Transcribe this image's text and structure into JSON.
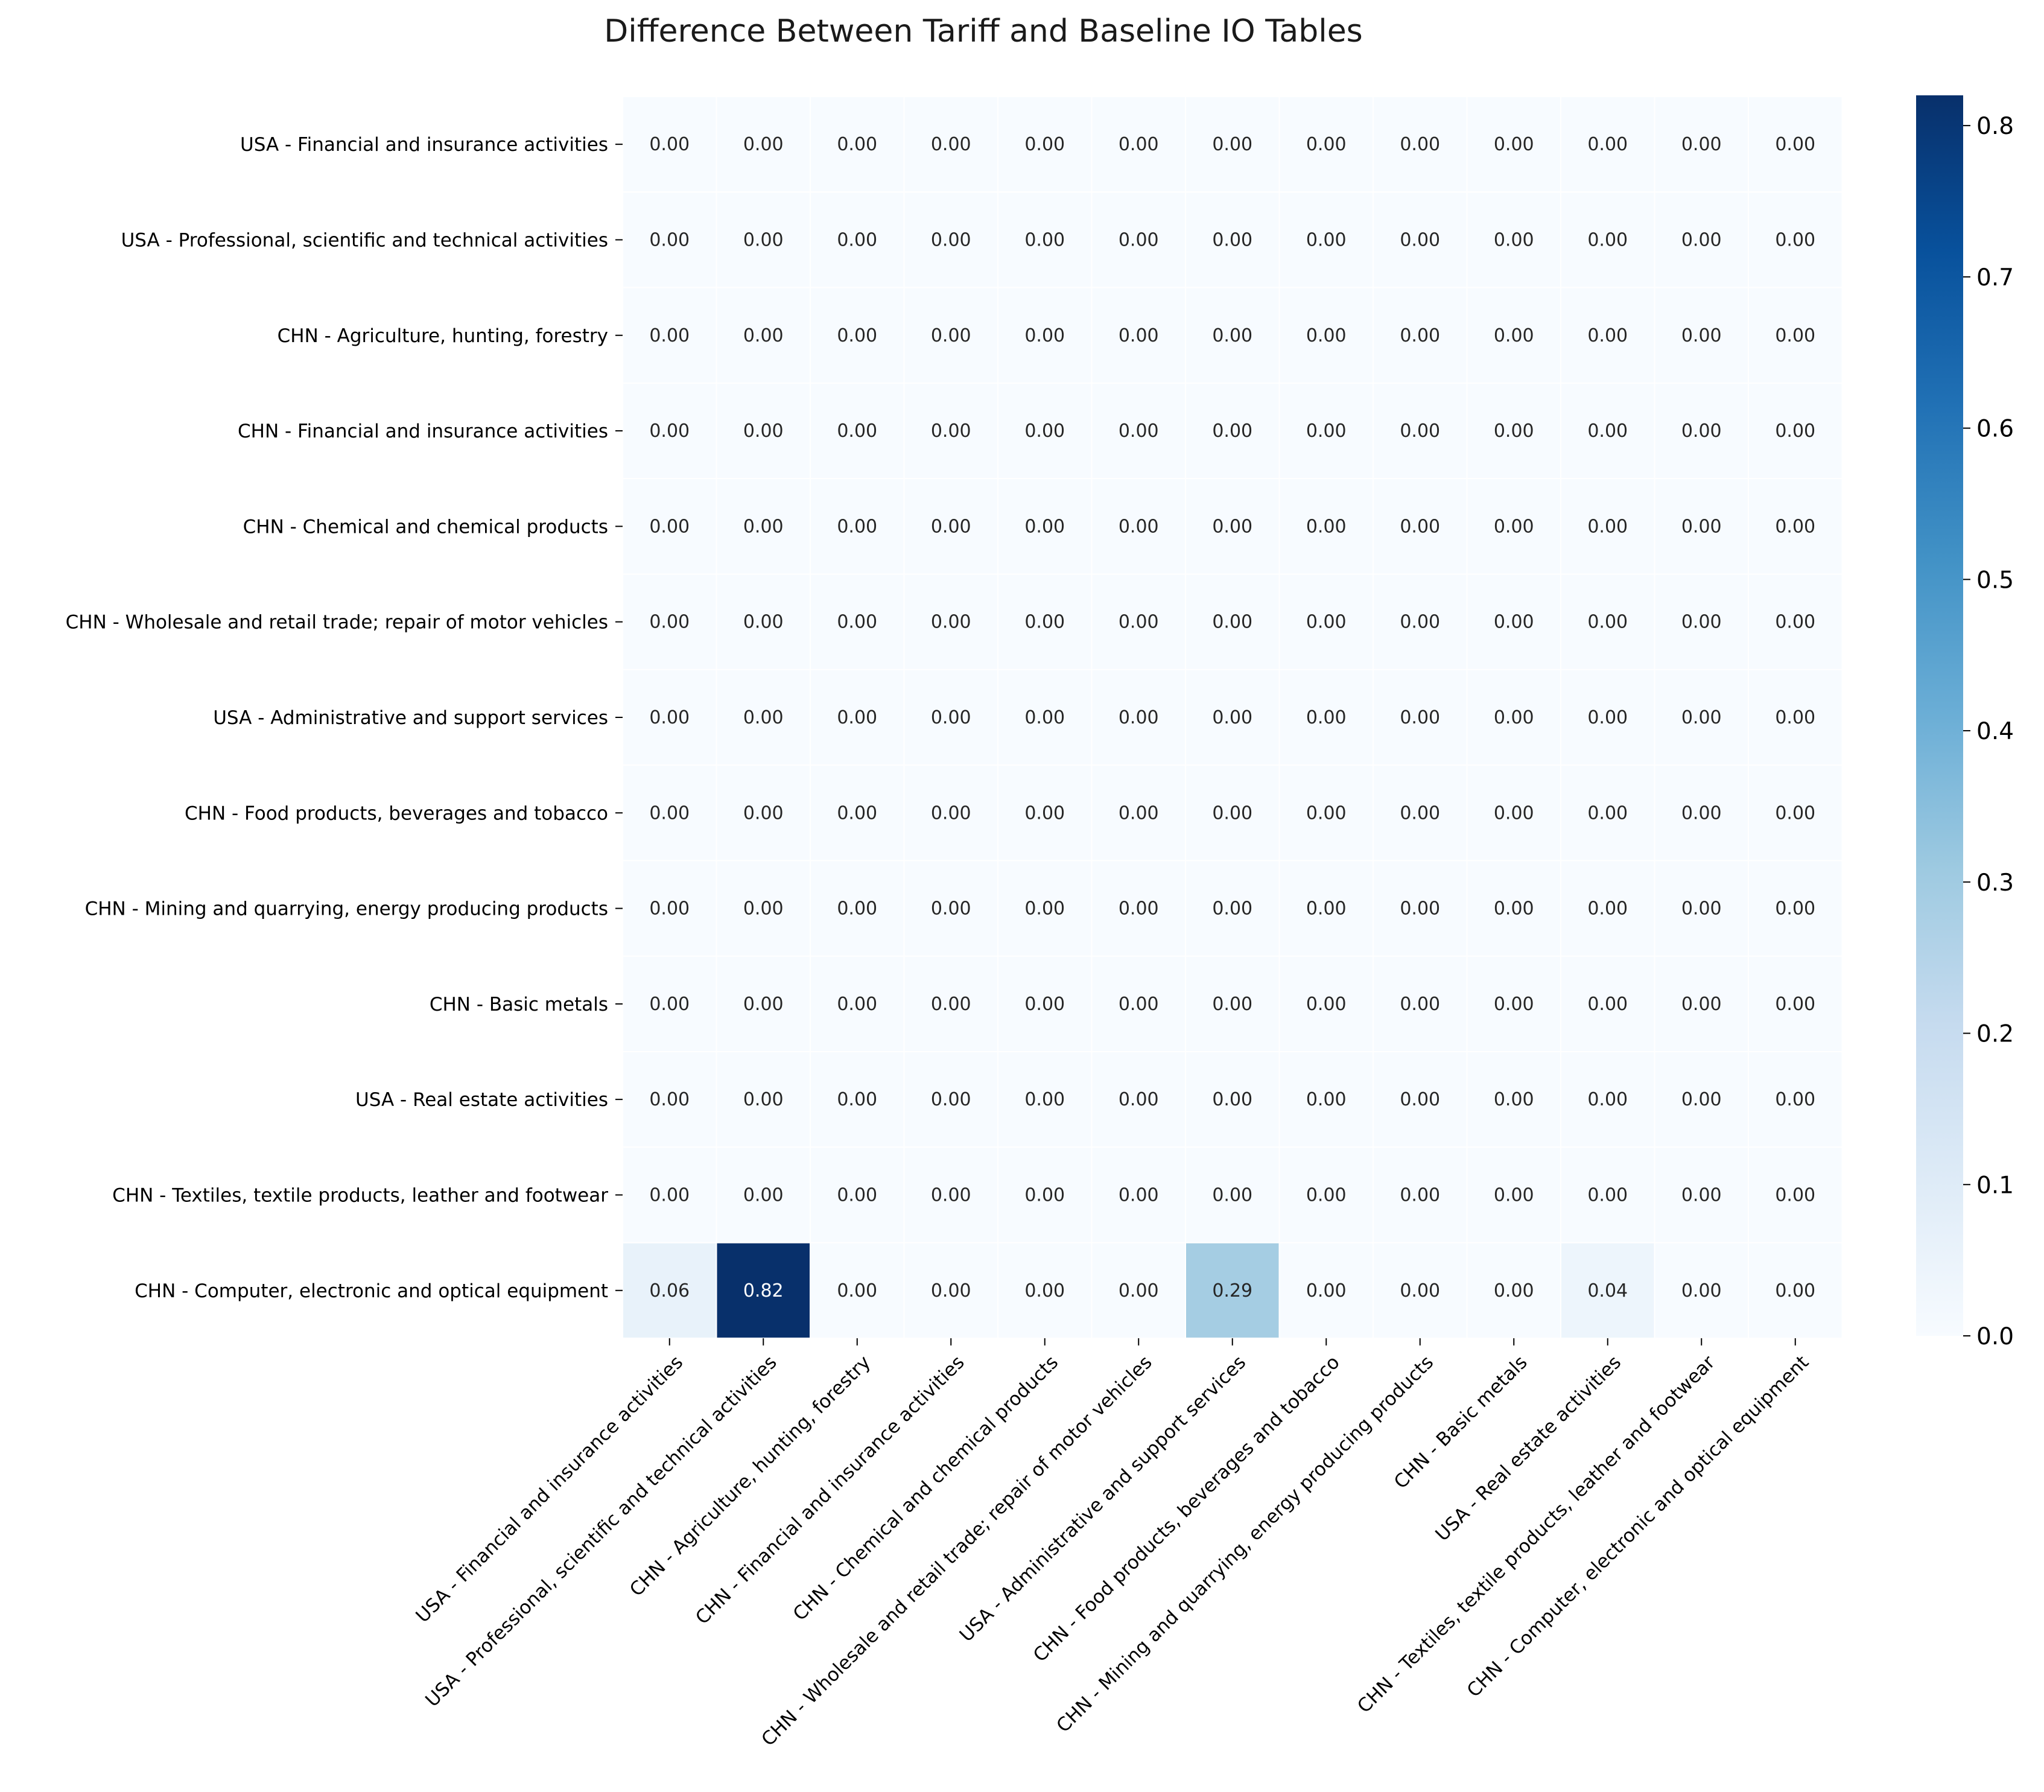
{
  "chart_data": {
    "type": "heatmap",
    "title": "Difference Between Tariff and Baseline IO Tables",
    "rows": [
      "USA - Financial and insurance activities",
      "USA - Professional, scientific and technical activities",
      "CHN - Agriculture, hunting, forestry",
      "CHN - Financial and insurance activities",
      "CHN - Chemical and chemical products",
      "CHN - Wholesale and retail trade; repair of motor vehicles",
      "USA - Administrative and support services",
      "CHN - Food products, beverages and tobacco",
      "CHN - Mining and quarrying, energy producing products",
      "CHN - Basic metals",
      "USA - Real estate activities",
      "CHN - Textiles, textile products, leather and footwear",
      "CHN - Computer, electronic and optical equipment"
    ],
    "columns": [
      "USA - Financial and insurance activities",
      "USA - Professional, scientific and technical activities",
      "CHN - Agriculture, hunting, forestry",
      "CHN - Financial and insurance activities",
      "CHN - Chemical and chemical products",
      "CHN - Wholesale and retail trade; repair of motor vehicles",
      "USA - Administrative and support services",
      "CHN - Food products, beverages and tobacco",
      "CHN - Mining and quarrying, energy producing products",
      "CHN - Basic metals",
      "USA - Real estate activities",
      "CHN - Textiles, textile products, leather and footwear",
      "CHN - Computer, electronic and optical equipment"
    ],
    "values": [
      [
        0,
        0,
        0,
        0,
        0,
        0,
        0,
        0,
        0,
        0,
        0,
        0,
        0
      ],
      [
        0,
        0,
        0,
        0,
        0,
        0,
        0,
        0,
        0,
        0,
        0,
        0,
        0
      ],
      [
        0,
        0,
        0,
        0,
        0,
        0,
        0,
        0,
        0,
        0,
        0,
        0,
        0
      ],
      [
        0,
        0,
        0,
        0,
        0,
        0,
        0,
        0,
        0,
        0,
        0,
        0,
        0
      ],
      [
        0,
        0,
        0,
        0,
        0,
        0,
        0,
        0,
        0,
        0,
        0,
        0,
        0
      ],
      [
        0,
        0,
        0,
        0,
        0,
        0,
        0,
        0,
        0,
        0,
        0,
        0,
        0
      ],
      [
        0,
        0,
        0,
        0,
        0,
        0,
        0,
        0,
        0,
        0,
        0,
        0,
        0
      ],
      [
        0,
        0,
        0,
        0,
        0,
        0,
        0,
        0,
        0,
        0,
        0,
        0,
        0
      ],
      [
        0,
        0,
        0,
        0,
        0,
        0,
        0,
        0,
        0,
        0,
        0,
        0,
        0
      ],
      [
        0,
        0,
        0,
        0,
        0,
        0,
        0,
        0,
        0,
        0,
        0,
        0,
        0
      ],
      [
        0,
        0,
        0,
        0,
        0,
        0,
        0,
        0,
        0,
        0,
        0,
        0,
        0
      ],
      [
        0,
        0,
        0,
        0,
        0,
        0,
        0,
        0,
        0,
        0,
        0,
        0,
        0
      ],
      [
        0.06,
        0.82,
        0,
        0,
        0,
        0,
        0.29,
        0,
        0,
        0,
        0.04,
        0,
        0
      ]
    ],
    "value_format": "0.00",
    "colormap": "Blues",
    "colormap_stops": [
      "#f7fbff",
      "#deebf7",
      "#c6dbef",
      "#9ecae1",
      "#6baed6",
      "#4292c6",
      "#2171b5",
      "#08519c",
      "#08306b"
    ],
    "vmin": 0,
    "vmax": 0.82,
    "colorbar_ticks": [
      "0.0",
      "0.1",
      "0.2",
      "0.3",
      "0.4",
      "0.5",
      "0.6",
      "0.7",
      "0.8"
    ],
    "colorbar_tick_values": [
      0,
      0.1,
      0.2,
      0.3,
      0.4,
      0.5,
      0.6,
      0.7,
      0.8
    ],
    "xlabel": "",
    "ylabel": "",
    "grid": false
  }
}
